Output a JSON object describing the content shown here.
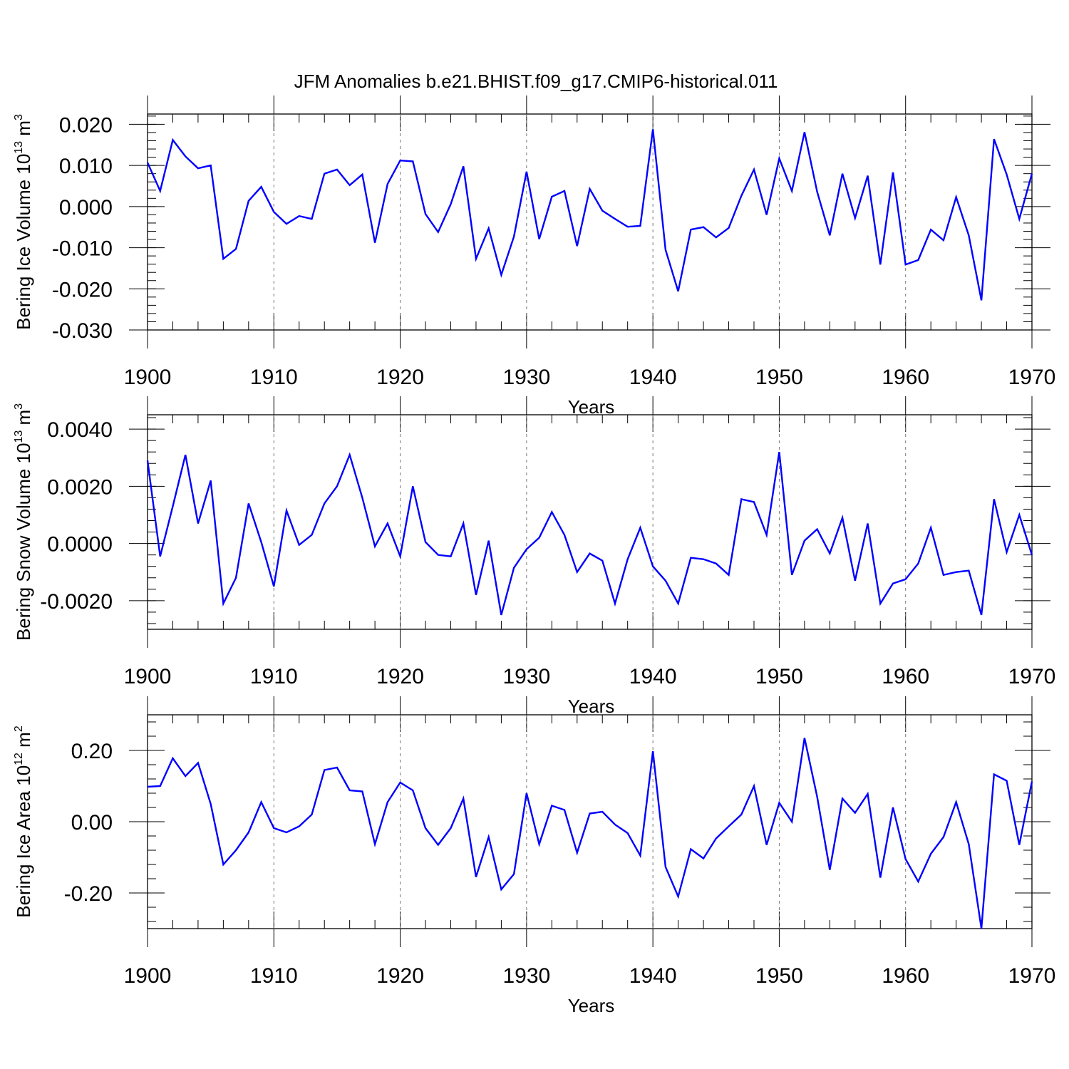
{
  "title": "JFM Anomalies b.e21.BHIST.f09_g17.CMIP6-historical.011",
  "line_color": "#0000ff",
  "chart_data": [
    {
      "type": "line",
      "ylabel_main": "Bering Ice Volume 10",
      "ylabel_exp": "13",
      "ylabel_unit": " m",
      "ylabel_unit_exp": "3",
      "xlabel": "Years",
      "xlim": [
        1900,
        1970
      ],
      "ylim": [
        -0.03,
        0.0225
      ],
      "yticks": [
        0.02,
        0.01,
        0.0,
        -0.01,
        -0.02,
        -0.03
      ],
      "ytick_labels": [
        "0.020",
        "0.010",
        "0.000",
        "-0.010",
        "-0.020",
        "-0.030"
      ],
      "xticks": [
        1900,
        1910,
        1920,
        1930,
        1940,
        1950,
        1960,
        1970
      ],
      "xtick_labels": [
        "1900",
        "1910",
        "1920",
        "1930",
        "1940",
        "1950",
        "1960",
        "1970"
      ],
      "x_start": 1900,
      "values": [
        0.0107,
        0.0038,
        0.0162,
        0.0122,
        0.0093,
        0.01,
        -0.0127,
        -0.0103,
        0.0014,
        0.0048,
        -0.0013,
        -0.0042,
        -0.0023,
        -0.003,
        0.008,
        0.009,
        0.0052,
        0.0078,
        -0.0088,
        0.0055,
        0.0112,
        0.011,
        -0.0018,
        -0.0062,
        0.0006,
        0.0098,
        -0.0127,
        -0.0053,
        -0.0166,
        -0.0073,
        0.0085,
        -0.0079,
        0.0024,
        0.0038,
        -0.0096,
        0.0043,
        -0.001,
        -0.003,
        -0.0049,
        -0.0047,
        0.0188,
        -0.0105,
        -0.0206,
        -0.0056,
        -0.005,
        -0.0075,
        -0.0052,
        0.0026,
        0.009,
        -0.002,
        0.0117,
        0.0038,
        0.0181,
        0.0036,
        -0.007,
        0.008,
        -0.0028,
        0.0075,
        -0.0141,
        0.0083,
        -0.0141,
        -0.013,
        -0.0056,
        -0.0082,
        0.0023,
        -0.007,
        -0.0228,
        0.0164,
        0.0078,
        -0.003,
        0.008
      ]
    },
    {
      "type": "line",
      "ylabel_main": "Bering Snow Volume 10",
      "ylabel_exp": "13",
      "ylabel_unit": " m",
      "ylabel_unit_exp": "3",
      "xlabel": "Years",
      "xlim": [
        1900,
        1970
      ],
      "ylim": [
        -0.003,
        0.0045
      ],
      "yticks": [
        0.004,
        0.002,
        0.0,
        -0.002
      ],
      "ytick_labels": [
        "0.0040",
        "0.0020",
        "0.0000",
        "-0.0020"
      ],
      "xticks": [
        1900,
        1910,
        1920,
        1930,
        1940,
        1950,
        1960,
        1970
      ],
      "xtick_labels": [
        "1900",
        "1910",
        "1920",
        "1930",
        "1940",
        "1950",
        "1960",
        "1970"
      ],
      "x_start": 1900,
      "values": [
        0.0029,
        -0.00045,
        0.0013,
        0.0031,
        0.0007,
        0.0022,
        -0.0021,
        -0.0012,
        0.0014,
        5e-05,
        -0.0015,
        0.00115,
        -5e-05,
        0.0003,
        0.0014,
        0.002,
        0.0031,
        0.0016,
        -0.0001,
        0.0007,
        -0.00045,
        0.002,
        5e-05,
        -0.0004,
        -0.00045,
        0.0007,
        -0.0018,
        0.0001,
        -0.0025,
        -0.00085,
        -0.0002,
        0.0002,
        0.0011,
        0.0003,
        -0.001,
        -0.00035,
        -0.0006,
        -0.0021,
        -0.00055,
        0.00055,
        -0.0008,
        -0.0013,
        -0.0021,
        -0.0005,
        -0.00055,
        -0.0007,
        -0.0011,
        0.00155,
        0.00145,
        0.0003,
        0.0032,
        -0.0011,
        0.0001,
        0.0005,
        -0.00035,
        0.0009,
        -0.0013,
        0.0007,
        -0.0021,
        -0.0014,
        -0.00125,
        -0.0007,
        0.00055,
        -0.0011,
        -0.001,
        -0.00095,
        -0.0025,
        0.00155,
        -0.0003,
        0.001,
        -0.0004
      ]
    },
    {
      "type": "line",
      "ylabel_main": "Bering Ice Area 10",
      "ylabel_exp": "12",
      "ylabel_unit": " m",
      "ylabel_unit_exp": "2",
      "xlabel": "Years",
      "xlim": [
        1900,
        1970
      ],
      "ylim": [
        -0.3,
        0.3
      ],
      "yticks": [
        0.2,
        0.0,
        -0.2
      ],
      "ytick_labels": [
        "0.20",
        "0.00",
        "-0.20"
      ],
      "xticks": [
        1900,
        1910,
        1920,
        1930,
        1940,
        1950,
        1960,
        1970
      ],
      "xtick_labels": [
        "1900",
        "1910",
        "1920",
        "1930",
        "1940",
        "1950",
        "1960",
        "1970"
      ],
      "x_start": 1900,
      "values": [
        0.098,
        0.1,
        0.178,
        0.128,
        0.165,
        0.05,
        -0.12,
        -0.08,
        -0.03,
        0.055,
        -0.018,
        -0.03,
        -0.013,
        0.02,
        0.145,
        0.152,
        0.088,
        0.085,
        -0.063,
        0.055,
        0.11,
        0.088,
        -0.018,
        -0.065,
        -0.018,
        0.065,
        -0.155,
        -0.043,
        -0.19,
        -0.147,
        0.08,
        -0.063,
        0.045,
        0.033,
        -0.087,
        0.023,
        0.028,
        -0.008,
        -0.032,
        -0.095,
        0.198,
        -0.127,
        -0.21,
        -0.077,
        -0.103,
        -0.047,
        -0.013,
        0.02,
        0.1,
        -0.065,
        0.053,
        0.0,
        0.235,
        0.07,
        -0.135,
        0.065,
        0.025,
        0.078,
        -0.157,
        0.04,
        -0.105,
        -0.168,
        -0.09,
        -0.043,
        0.055,
        -0.063,
        -0.3,
        0.133,
        0.115,
        -0.065,
        0.113
      ]
    }
  ]
}
